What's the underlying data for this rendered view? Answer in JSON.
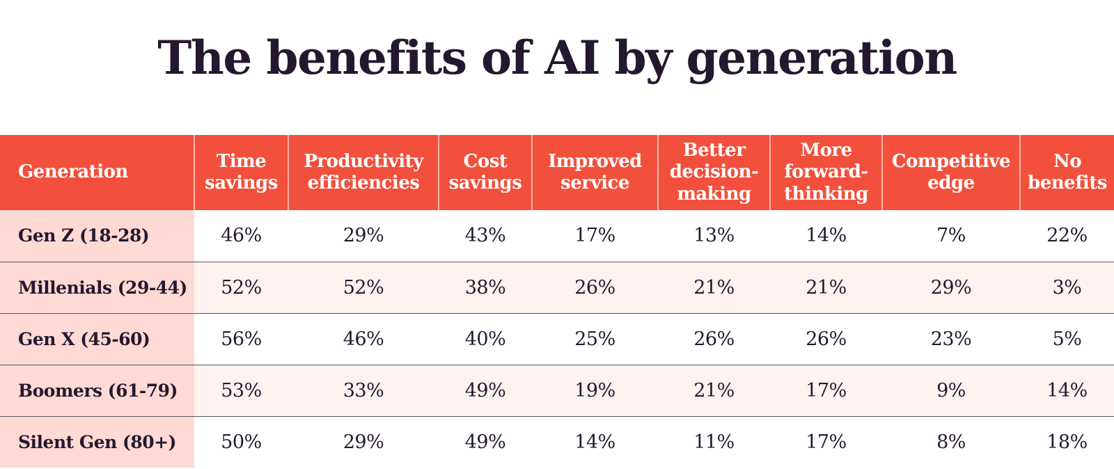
{
  "title": "The benefits of AI by generation",
  "chart_data": {
    "type": "table",
    "title": "The benefits of AI by generation",
    "columns": [
      "Generation",
      "Time savings",
      "Productivity efficiencies",
      "Cost savings",
      "Improved service",
      "Better decision-making",
      "More forward-thinking",
      "Competitive edge",
      "No benefits"
    ],
    "header_lines": [
      [
        "Generation"
      ],
      [
        "Time",
        "savings"
      ],
      [
        "Productivity",
        "efficiencies"
      ],
      [
        "Cost",
        "savings"
      ],
      [
        "Improved",
        "service"
      ],
      [
        "Better",
        "decision-",
        "making"
      ],
      [
        "More",
        "forward-",
        "thinking"
      ],
      [
        "Competitive",
        "edge"
      ],
      [
        "No",
        "benefits"
      ]
    ],
    "rows": [
      {
        "generation": "Gen Z (18-28)",
        "values": [
          "46%",
          "29%",
          "43%",
          "17%",
          "13%",
          "14%",
          "7%",
          "22%"
        ]
      },
      {
        "generation": "Millenials (29-44)",
        "values": [
          "52%",
          "52%",
          "38%",
          "26%",
          "21%",
          "21%",
          "29%",
          "3%"
        ]
      },
      {
        "generation": "Gen X (45-60)",
        "values": [
          "56%",
          "46%",
          "40%",
          "25%",
          "26%",
          "26%",
          "23%",
          "5%"
        ]
      },
      {
        "generation": "Boomers (61-79)",
        "values": [
          "53%",
          "33%",
          "49%",
          "19%",
          "21%",
          "17%",
          "9%",
          "14%"
        ]
      },
      {
        "generation": "Silent Gen (80+)",
        "values": [
          "50%",
          "29%",
          "49%",
          "14%",
          "11%",
          "17%",
          "8%",
          "18%"
        ]
      }
    ]
  },
  "colors": {
    "header_bg": "#f2503c",
    "generation_col_bg": "#ffd9d4",
    "alt_row_bg": "#fff2f0",
    "text": "#24182f"
  }
}
